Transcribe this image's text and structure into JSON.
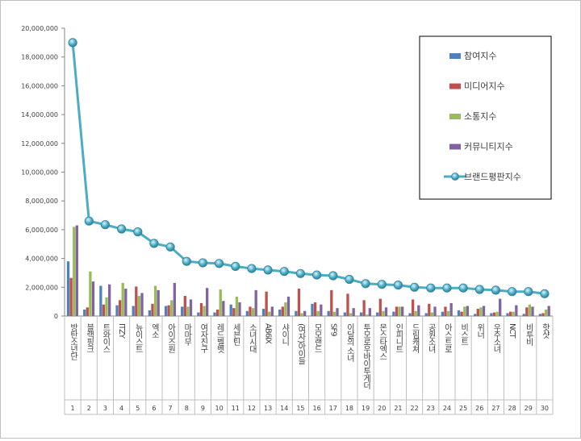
{
  "chart_data": {
    "type": "bar",
    "title": "",
    "xlabel": "",
    "ylabel": "",
    "ylim": [
      0,
      20000000
    ],
    "yticks": [
      "0",
      "2,000,000",
      "4,000,000",
      "6,000,000",
      "8,000,000",
      "10,000,000",
      "12,000,000",
      "14,000,000",
      "16,000,000",
      "18,000,000",
      "20,000,000"
    ],
    "grid": false,
    "legend_position": "top-right",
    "ranks": [
      "1",
      "2",
      "3",
      "4",
      "5",
      "6",
      "7",
      "8",
      "9",
      "10",
      "11",
      "12",
      "13",
      "14",
      "15",
      "16",
      "17",
      "18",
      "19",
      "20",
      "21",
      "22",
      "23",
      "24",
      "25",
      "26",
      "27",
      "28",
      "29",
      "30"
    ],
    "categories": [
      "방탄소년단",
      "블랙핑크",
      "트와이스",
      "ITZY",
      "뉴이스트",
      "엑소",
      "아이즈원",
      "마마무",
      "여자친구",
      "레드벨벳",
      "세븐틴",
      "소녀시대",
      "AB6IX",
      "샤이니",
      "(여자)아이들",
      "모모랜드",
      "SF9",
      "이달의 소녀",
      "투모로우바이투게더",
      "몬스타엑스",
      "인피니트",
      "드림캐쳐",
      "공원소녀",
      "아스트로",
      "비스트",
      "위너",
      "우주소녀",
      "NCT",
      "비투비",
      "핫샷"
    ],
    "series": [
      {
        "name": "참여지수",
        "type": "bar",
        "color": "#4f81bd",
        "values": [
          3800000,
          450000,
          2100000,
          750000,
          700000,
          400000,
          700000,
          650000,
          250000,
          250000,
          800000,
          350000,
          500000,
          450000,
          350000,
          850000,
          350000,
          250000,
          250000,
          250000,
          300000,
          200000,
          200000,
          300000,
          400000,
          150000,
          200000,
          200000,
          150000,
          150000
        ]
      },
      {
        "name": "미디어지수",
        "type": "bar",
        "color": "#c0504d",
        "values": [
          2650000,
          600000,
          800000,
          1100000,
          2050000,
          850000,
          750000,
          1400000,
          900000,
          450000,
          550000,
          650000,
          1700000,
          650000,
          1900000,
          950000,
          1800000,
          1550000,
          1100000,
          1200000,
          650000,
          1150000,
          850000,
          650000,
          300000,
          500000,
          250000,
          300000,
          600000,
          200000
        ]
      },
      {
        "name": "소통지수",
        "type": "bar",
        "color": "#9bbb59",
        "values": [
          6200000,
          3100000,
          1300000,
          2300000,
          1400000,
          2100000,
          1100000,
          650000,
          700000,
          1850000,
          1350000,
          550000,
          300000,
          950000,
          200000,
          350000,
          300000,
          200000,
          100000,
          350000,
          650000,
          350000,
          250000,
          350000,
          650000,
          600000,
          300000,
          300000,
          800000,
          450000
        ]
      },
      {
        "name": "커뮤니티지수",
        "type": "bar",
        "color": "#8064a2",
        "values": [
          6300000,
          2400000,
          2200000,
          1900000,
          1600000,
          1800000,
          2300000,
          1150000,
          1950000,
          1050000,
          950000,
          1800000,
          650000,
          1350000,
          350000,
          800000,
          550000,
          550000,
          550000,
          600000,
          650000,
          750000,
          650000,
          900000,
          700000,
          700000,
          1200000,
          750000,
          650000,
          700000
        ]
      },
      {
        "name": "브랜드평판지수",
        "type": "line",
        "color": "#4bacc6",
        "values": [
          19000000,
          6600000,
          6350000,
          6050000,
          5850000,
          5050000,
          4800000,
          3800000,
          3700000,
          3650000,
          3450000,
          3300000,
          3200000,
          3100000,
          2950000,
          2850000,
          2800000,
          2550000,
          2250000,
          2200000,
          2150000,
          2000000,
          1950000,
          1950000,
          1950000,
          1850000,
          1800000,
          1700000,
          1700000,
          1550000
        ]
      }
    ]
  }
}
